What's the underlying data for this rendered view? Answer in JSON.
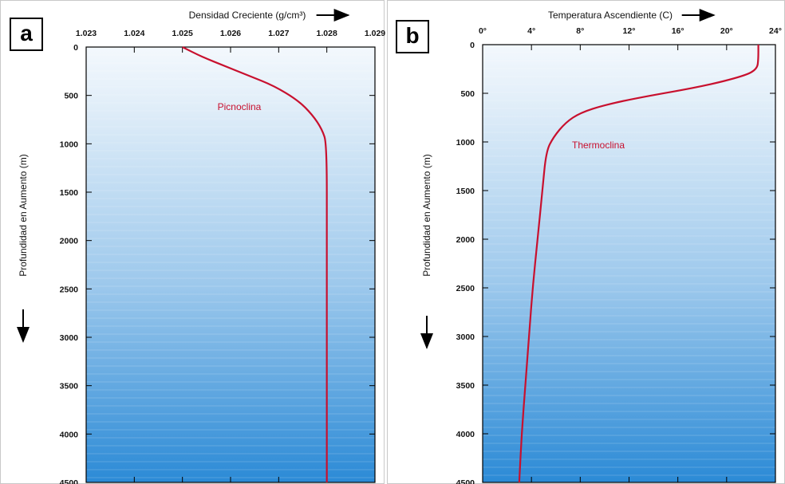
{
  "colors": {
    "curve": "#c8102e",
    "water_top": "#eef5fc",
    "water_bottom": "#2f8fd8",
    "border": "#000000"
  },
  "chart_data": [
    {
      "panel_label": "a",
      "type": "line",
      "xlabel": "Densidad Creciente (g/cm³)",
      "ylabel": "Profundidad en Aumento (m)",
      "xlim": [
        1.023,
        1.029
      ],
      "ylim": [
        0,
        4500
      ],
      "y_inverted": true,
      "x_axis_position": "top",
      "x_ticks": [
        "1.023",
        "1.024",
        "1.025",
        "1.026",
        "1.027",
        "1.028",
        "1.029"
      ],
      "y_ticks": [
        "0",
        "500",
        "1000",
        "1500",
        "2000",
        "2500",
        "3000",
        "3500",
        "4000",
        "4500"
      ],
      "annotation": "Picnoclina",
      "series": [
        {
          "x": [
            1.025,
            1.0254,
            1.0259,
            1.0264,
            1.0269,
            1.0274,
            1.0277,
            1.0279,
            1.028,
            1.028,
            1.028,
            1.028,
            1.028
          ],
          "y": [
            0,
            100,
            200,
            300,
            400,
            550,
            700,
            850,
            1000,
            2000,
            3000,
            4000,
            4500
          ]
        }
      ]
    },
    {
      "panel_label": "b",
      "type": "line",
      "xlabel": "Temperatura Ascendiente (C)",
      "ylabel": "Profundidad en Aumento (m)",
      "xlim": [
        0,
        24
      ],
      "ylim": [
        0,
        4500
      ],
      "y_inverted": true,
      "x_axis_position": "top",
      "x_ticks": [
        "0°",
        "4°",
        "8°",
        "12°",
        "16°",
        "20°",
        "24°"
      ],
      "y_ticks": [
        "0",
        "500",
        "1000",
        "1500",
        "2000",
        "2500",
        "3000",
        "3500",
        "4000",
        "4500"
      ],
      "annotation": "Thermoclina",
      "series": [
        {
          "x": [
            22.6,
            22.6,
            22.5,
            21.5,
            18,
            13,
            10,
            8,
            6.8,
            5.8,
            5.2,
            4.9,
            4.5,
            4.1,
            3.8,
            3.5,
            3.2,
            3
          ],
          "y": [
            0,
            150,
            250,
            320,
            430,
            540,
            620,
            700,
            800,
            950,
            1100,
            1500,
            2000,
            2500,
            3000,
            3500,
            4000,
            4500
          ]
        }
      ]
    }
  ]
}
